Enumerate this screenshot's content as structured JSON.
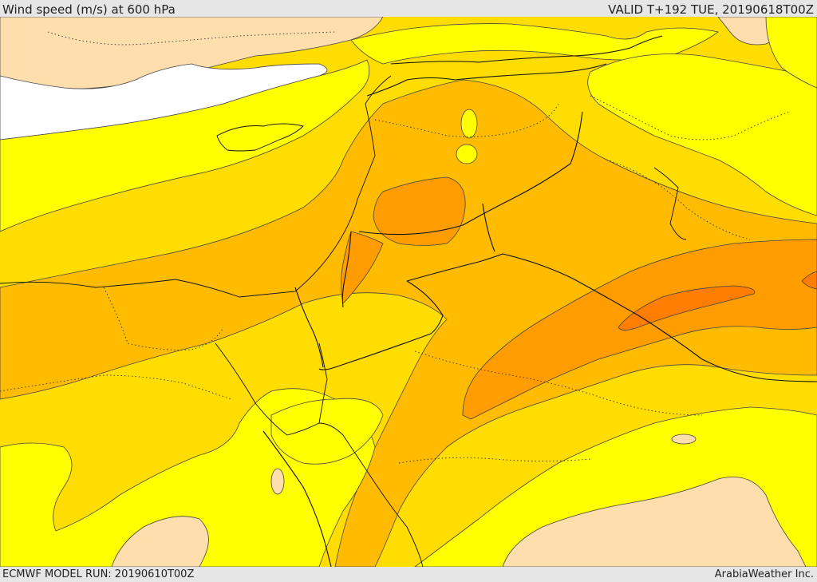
{
  "header": {
    "title": "Wind speed (m/s) at 600 hPa",
    "valid": "VALID T+192 TUE, 20190618T00Z"
  },
  "footer": {
    "model_run": "ECMWF MODEL RUN: 20190610T00Z",
    "credit": "ArabiaWeather Inc."
  },
  "colors": {
    "white": "#ffffff",
    "peach": "#ffdead",
    "yellow": "#ffff00",
    "gold": "#ffdd00",
    "light_orange": "#ffbb00",
    "orange": "#ff9c00",
    "dark_orange": "#ff7d00"
  }
}
